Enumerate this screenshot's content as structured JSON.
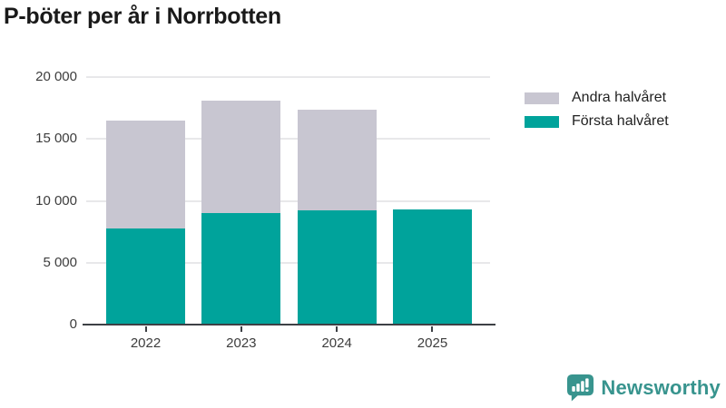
{
  "title": "P-böter per år i Norrbotten",
  "colors": {
    "first_half": "#00a39b",
    "second_half": "#c8c6d1",
    "axis": "#3d4045",
    "grid": "#e8e8ea",
    "tick_text": "#3d3d3d",
    "title_text": "#1a1a1a",
    "logo": "#38948e"
  },
  "chart_data": {
    "type": "bar",
    "stacked": true,
    "title": "P-böter per år i Norrbotten",
    "categories": [
      "2022",
      "2023",
      "2024",
      "2025"
    ],
    "series": [
      {
        "name": "Första halvåret",
        "color": "#00a39b",
        "values": [
          7800,
          9000,
          9200,
          9300
        ]
      },
      {
        "name": "Andra halvåret",
        "color": "#c8c6d1",
        "values": [
          8700,
          9100,
          8200,
          0
        ]
      }
    ],
    "xlabel": "",
    "ylabel": "",
    "ylim": [
      0,
      20000
    ],
    "yticks": [
      0,
      5000,
      10000,
      15000,
      20000
    ],
    "ytick_labels": [
      "0",
      "5 000",
      "10 000",
      "15 000",
      "20 000"
    ],
    "grid": true,
    "legend_position": "right",
    "legend_order": [
      "Andra halvåret",
      "Första halvåret"
    ]
  },
  "legend": {
    "items": [
      {
        "label": "Andra halvåret",
        "color": "#c8c6d1"
      },
      {
        "label": "Första halvåret",
        "color": "#00a39b"
      }
    ]
  },
  "branding": {
    "logo_text": "Newsworthy",
    "logo_icon": "newsworthy-bar-chart-bubble-icon"
  }
}
